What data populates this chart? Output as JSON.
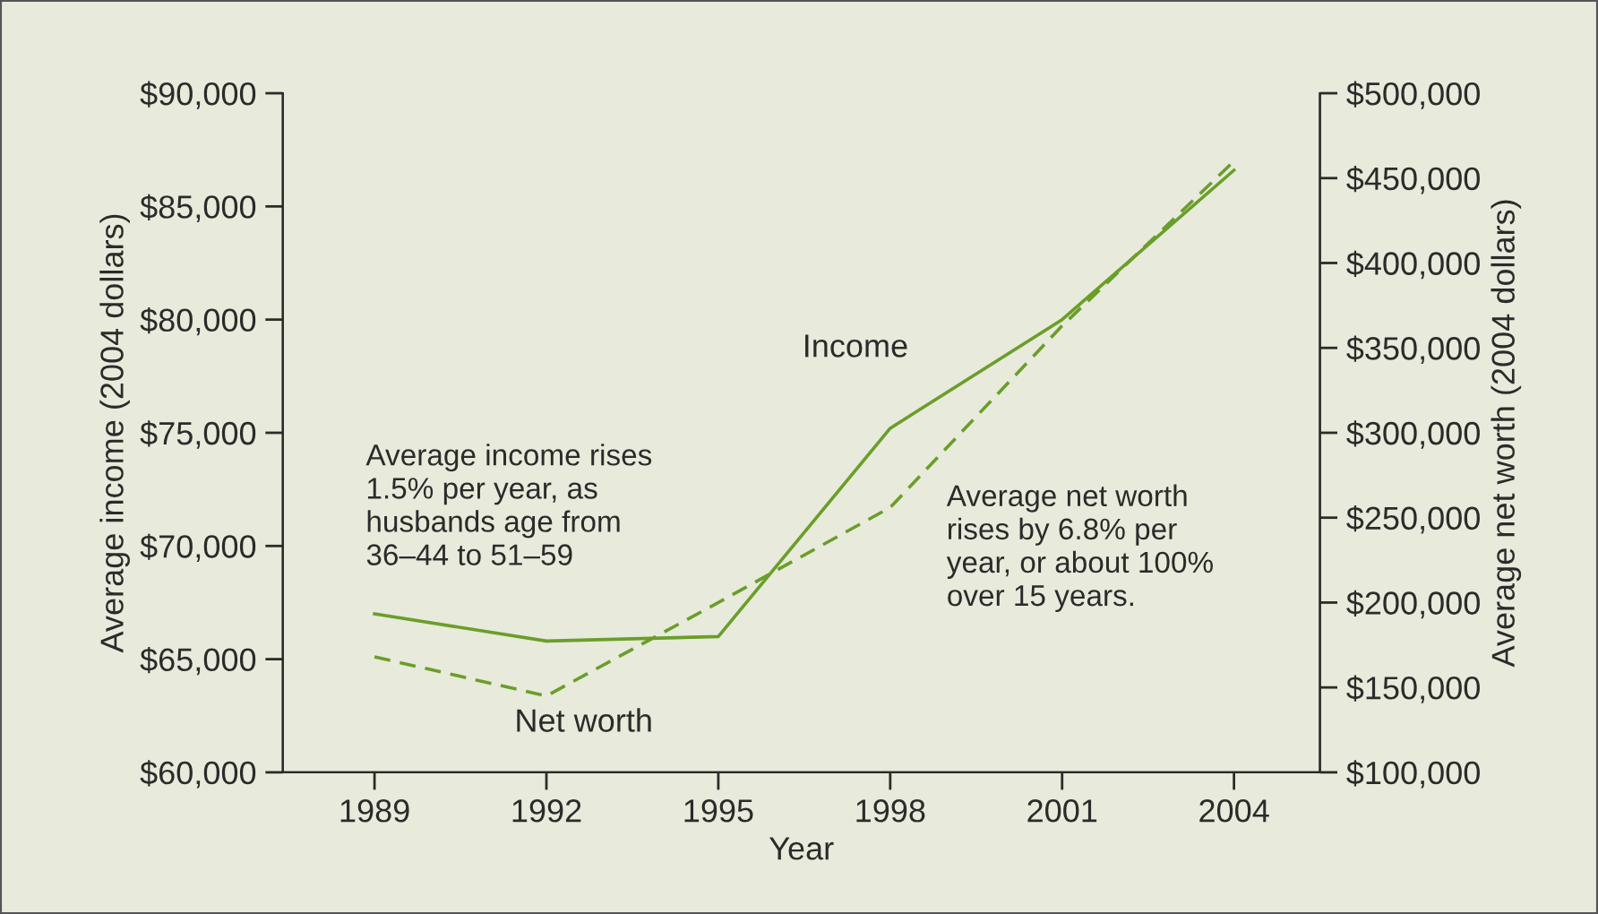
{
  "chart_data": {
    "type": "line",
    "xlabel": "Year",
    "ylabel": "Average income (2004 dollars)",
    "y2label": "Average net worth (2004 dollars)",
    "x": [
      1989,
      1992,
      1995,
      1998,
      2001,
      2004
    ],
    "series": [
      {
        "name": "Income",
        "color": "#6a9e2a",
        "values": [
          67000,
          65800,
          66000,
          75200,
          80000,
          86600
        ],
        "line_style": "solid"
      },
      {
        "name": "Net worth",
        "color": "#6a9e2a",
        "values": [
          168000,
          145000,
          200000,
          256000,
          363000,
          460000
        ],
        "line_style": "dashed",
        "axis": "y2"
      }
    ],
    "xlim": [
      1987.4,
      2005.5
    ],
    "xticks": [
      1989,
      1992,
      1995,
      1998,
      2001,
      2004
    ],
    "ylim": [
      60000,
      90000
    ],
    "yticks": [
      {
        "value": 60000,
        "label": "$60,000"
      },
      {
        "value": 65000,
        "label": "$65,000"
      },
      {
        "value": 70000,
        "label": "$70,000"
      },
      {
        "value": 75000,
        "label": "$75,000"
      },
      {
        "value": 80000,
        "label": "$80,000"
      },
      {
        "value": 85000,
        "label": "$85,000"
      },
      {
        "value": 90000,
        "label": "$90,000"
      }
    ],
    "y2lim": [
      100000,
      500000
    ],
    "y2ticks": [
      {
        "value": 100000,
        "label": "$100,000"
      },
      {
        "value": 150000,
        "label": "$150,000"
      },
      {
        "value": 200000,
        "label": "$200,000"
      },
      {
        "value": 250000,
        "label": "$250,000"
      },
      {
        "value": 300000,
        "label": "$300,000"
      },
      {
        "value": 350000,
        "label": "$350,000"
      },
      {
        "value": 400000,
        "label": "$400,000"
      },
      {
        "value": 450000,
        "label": "$450,000"
      },
      {
        "value": 500000,
        "label": "$500,000"
      }
    ],
    "annotations": [
      "Average income rises\n1.5% per year, as\nhusbands age from\n36–44 to 51–59",
      "Average net worth\nrises by 6.8% per\nyear, or about 100%\nover 15 years."
    ],
    "grid": false,
    "legend": false,
    "marker": "none"
  }
}
